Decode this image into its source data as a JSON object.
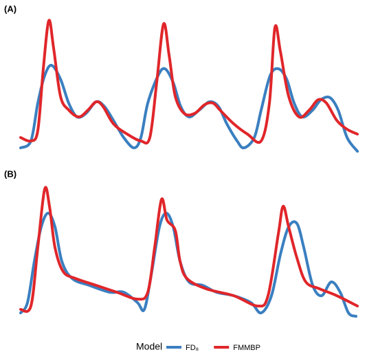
{
  "chart_data": [
    {
      "type": "line",
      "title": "(A)",
      "xlim": [
        30,
        520
      ],
      "ylim": [
        0,
        200
      ],
      "series": [
        {
          "name": "FD₈",
          "color": "#3a7fc0",
          "x": [
            30,
            45,
            55,
            65,
            75,
            88,
            100,
            112,
            125,
            140,
            152,
            165,
            180,
            195,
            205,
            215,
            230,
            240,
            252,
            263,
            275,
            290,
            305,
            318,
            330,
            345,
            355,
            370,
            380,
            393,
            405,
            417,
            428,
            440,
            455,
            467,
            480,
            492,
            505,
            520
          ],
          "values": [
            10,
            20,
            75,
            115,
            130,
            110,
            75,
            55,
            60,
            77,
            70,
            50,
            25,
            10,
            25,
            75,
            115,
            125,
            105,
            70,
            55,
            65,
            77,
            70,
            45,
            20,
            10,
            25,
            65,
            115,
            125,
            110,
            75,
            55,
            65,
            80,
            83,
            65,
            25,
            5
          ]
        },
        {
          "name": "FMMBP",
          "color": "#e0262a",
          "x": [
            30,
            45,
            55,
            63,
            71,
            78,
            88,
            100,
            115,
            128,
            140,
            150,
            165,
            185,
            205,
            218,
            228,
            238,
            246,
            255,
            268,
            283,
            298,
            310,
            320,
            340,
            360,
            380,
            392,
            400,
            408,
            420,
            435,
            450,
            463,
            475,
            490,
            505,
            520
          ],
          "values": [
            25,
            20,
            35,
            125,
            195,
            155,
            85,
            65,
            55,
            65,
            77,
            70,
            45,
            30,
            20,
            25,
            105,
            190,
            145,
            85,
            60,
            60,
            73,
            75,
            65,
            45,
            30,
            20,
            75,
            185,
            150,
            85,
            55,
            65,
            80,
            75,
            50,
            37,
            30
          ]
        }
      ]
    },
    {
      "type": "line",
      "title": "(B)",
      "xlim": [
        30,
        520
      ],
      "ylim": [
        0,
        200
      ],
      "series": [
        {
          "name": "FD₈",
          "color": "#3a7fc0",
          "x": [
            30,
            40,
            50,
            60,
            70,
            80,
            90,
            105,
            130,
            160,
            180,
            200,
            210,
            220,
            232,
            242,
            252,
            262,
            275,
            295,
            315,
            340,
            365,
            380,
            395,
            408,
            420,
            432,
            442,
            455,
            468,
            482,
            495,
            507,
            518
          ],
          "values": [
            10,
            25,
            85,
            135,
            155,
            135,
            85,
            60,
            50,
            40,
            40,
            25,
            15,
            65,
            135,
            155,
            135,
            85,
            55,
            50,
            40,
            35,
            25,
            10,
            35,
            95,
            135,
            140,
            105,
            50,
            35,
            55,
            40,
            10,
            5
          ]
        },
        {
          "name": "FMMBP",
          "color": "#e0262a",
          "x": [
            30,
            45,
            55,
            65,
            72,
            80,
            92,
            110,
            140,
            170,
            200,
            215,
            225,
            235,
            243,
            255,
            262,
            272,
            300,
            340,
            375,
            390,
            405,
            412,
            420,
            432,
            445,
            465,
            490,
            520
          ],
          "values": [
            15,
            20,
            105,
            190,
            165,
            105,
            70,
            60,
            50,
            40,
            30,
            40,
            105,
            175,
            145,
            130,
            85,
            60,
            45,
            35,
            20,
            35,
            125,
            165,
            135,
            90,
            55,
            45,
            35,
            20
          ]
        }
      ]
    }
  ],
  "legend": {
    "title": "Model"
  }
}
